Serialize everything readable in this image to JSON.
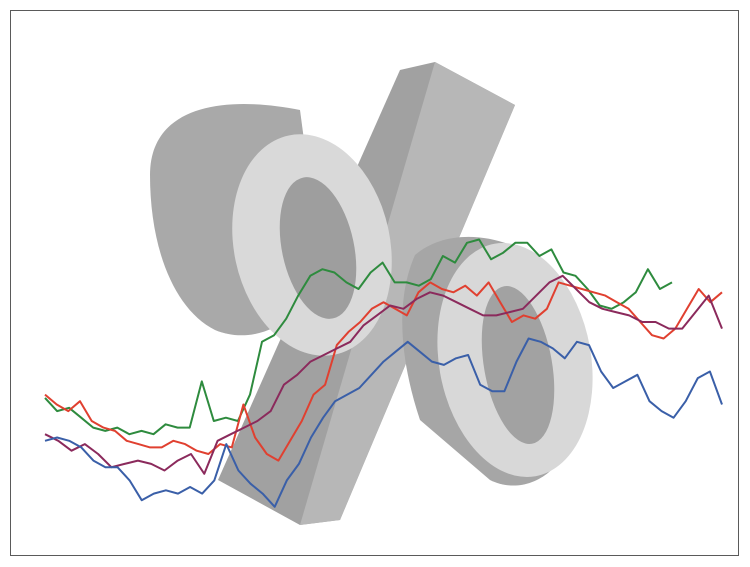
{
  "illustration": {
    "subject": "percent-sign-3d",
    "colors": {
      "face": "#dadada",
      "side": "#a9a9a9",
      "side_dark": "#989898",
      "border": "#5a5a5a",
      "background": "#ffffff"
    }
  },
  "chart_data": {
    "type": "line",
    "title": "",
    "xlabel": "",
    "ylabel": "",
    "grid": false,
    "legend": "none",
    "series": [
      {
        "color": "#2e8b3e",
        "values": [
          37,
          33,
          34,
          31,
          28,
          27,
          28,
          26,
          27,
          26,
          29,
          28,
          28,
          42,
          30,
          31,
          30,
          38,
          54,
          56,
          61,
          68,
          74,
          76,
          75,
          72,
          70,
          75,
          78,
          72,
          72,
          71,
          73,
          80,
          78,
          84,
          85,
          79,
          81,
          84,
          84,
          80,
          82,
          75,
          74,
          70,
          65,
          64,
          66,
          69,
          76,
          70,
          72
        ]
      },
      {
        "color": "#e04030",
        "values": [
          38,
          35,
          33,
          36,
          30,
          28,
          27,
          24,
          23,
          22,
          22,
          24,
          23,
          21,
          20,
          23,
          22,
          35,
          25,
          20,
          18,
          24,
          30,
          38,
          41,
          53,
          57,
          60,
          64,
          66,
          64,
          62,
          69,
          72,
          70,
          69,
          71,
          68,
          72,
          66,
          60,
          62,
          61,
          64,
          72,
          71,
          70,
          69,
          68,
          66,
          64,
          60,
          56,
          55,
          58,
          64,
          70,
          66,
          69
        ]
      },
      {
        "color": "#8b2a5c",
        "values": [
          26,
          24,
          21,
          23,
          20,
          16,
          17,
          18,
          17,
          15,
          18,
          20,
          14,
          24,
          26,
          28,
          30,
          33,
          41,
          44,
          48,
          50,
          52,
          54,
          59,
          62,
          65,
          64,
          67,
          69,
          68,
          66,
          64,
          62,
          62,
          63,
          64,
          68,
          72,
          74,
          70,
          66,
          64,
          63,
          62,
          60,
          60,
          58,
          58,
          63,
          68,
          58
        ]
      },
      {
        "color": "#3a5fa8",
        "values": [
          24,
          25,
          24,
          22,
          18,
          16,
          16,
          12,
          6,
          8,
          9,
          8,
          10,
          8,
          12,
          23,
          15,
          11,
          8,
          4,
          12,
          17,
          25,
          31,
          36,
          38,
          40,
          44,
          48,
          51,
          54,
          51,
          48,
          47,
          49,
          50,
          41,
          39,
          39,
          48,
          55,
          54,
          52,
          49,
          54,
          53,
          45,
          40,
          42,
          44,
          36,
          33,
          31,
          36,
          43,
          45,
          35
        ]
      }
    ]
  }
}
